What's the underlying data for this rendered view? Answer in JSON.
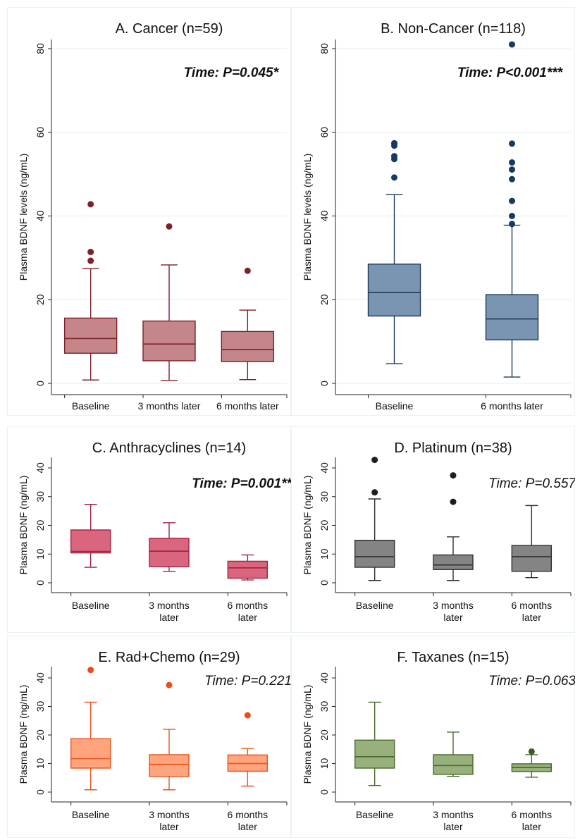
{
  "chart_data": [
    {
      "panel": "A",
      "type": "box",
      "title": "A. Cancer (n=59)",
      "annotation": "Time: P=0.045*",
      "annotation_style": "bold-italic",
      "ylabel": "Plasma BDNF levels (ng/mL)",
      "ylim": [
        0,
        80
      ],
      "yticks": [
        0,
        20,
        40,
        60,
        80
      ],
      "grid": true,
      "colors": {
        "fill": "#c4868b",
        "stroke": "#7d2228",
        "outlier": "#7d2228"
      },
      "boxes": [
        {
          "label": [
            "Baseline"
          ],
          "whisker_low": 0.8,
          "q1": 7.2,
          "median": 10.7,
          "q3": 15.6,
          "whisker_high": 27.4,
          "outliers": [
            29.3,
            31.4,
            42.8
          ]
        },
        {
          "label": [
            "3 months later"
          ],
          "whisker_low": 0.7,
          "q1": 5.4,
          "median": 9.4,
          "q3": 14.9,
          "whisker_high": 28.3,
          "outliers": [
            37.5
          ]
        },
        {
          "label": [
            "6 months later"
          ],
          "whisker_low": 0.9,
          "q1": 5.2,
          "median": 8.1,
          "q3": 12.4,
          "whisker_high": 17.5,
          "outliers": [
            26.9
          ]
        }
      ]
    },
    {
      "panel": "B",
      "type": "box",
      "title": "B. Non-Cancer (n=118)",
      "annotation": "Time: P<0.001***",
      "annotation_style": "bold-italic",
      "ylabel": "Plasma BDNF levels (ng/mL)",
      "ylim": [
        0,
        80
      ],
      "yticks": [
        0,
        20,
        40,
        60,
        80
      ],
      "grid": true,
      "colors": {
        "fill": "#7995b2",
        "stroke": "#1c3a5e",
        "outlier": "#143965"
      },
      "boxes": [
        {
          "label": [
            "Baseline"
          ],
          "whisker_low": 4.7,
          "q1": 16.1,
          "median": 21.7,
          "q3": 28.5,
          "whisker_high": 45.1,
          "outliers": [
            49.2,
            53.6,
            54.3,
            56.8,
            57.4
          ]
        },
        {
          "label": [
            "6 months later"
          ],
          "whisker_low": 1.5,
          "q1": 10.4,
          "median": 15.4,
          "q3": 21.2,
          "whisker_high": 37.8,
          "outliers": [
            38.1,
            40.0,
            43.6,
            48.8,
            51.1,
            52.8,
            57.3,
            81.0
          ]
        }
      ]
    },
    {
      "panel": "C",
      "type": "box",
      "title": "C. Anthracyclines (n=14)",
      "annotation": "Time: P=0.001**",
      "annotation_style": "bold-italic",
      "ylabel": "Plasma BDNF (ng/mL)",
      "ylim": [
        0,
        40
      ],
      "yticks": [
        0,
        10,
        20,
        30,
        40
      ],
      "grid": false,
      "colors": {
        "fill": "#d9657f",
        "stroke": "#a3233f",
        "outlier": "#a3233f"
      },
      "boxes": [
        {
          "label": [
            "Baseline"
          ],
          "whisker_low": 5.4,
          "q1": 10.4,
          "median": 10.9,
          "q3": 18.4,
          "whisker_high": 27.3,
          "outliers": []
        },
        {
          "label": [
            "3 months",
            "later"
          ],
          "whisker_low": 4.0,
          "q1": 5.6,
          "median": 11.0,
          "q3": 15.5,
          "whisker_high": 20.9,
          "outliers": []
        },
        {
          "label": [
            "6 months",
            "later"
          ],
          "whisker_low": 1.0,
          "q1": 1.6,
          "median": 5.2,
          "q3": 7.5,
          "whisker_high": 9.7,
          "outliers": []
        }
      ]
    },
    {
      "panel": "D",
      "type": "box",
      "title": "D. Platinum (n=38)",
      "annotation": "Time: P=0.557",
      "annotation_style": "italic",
      "ylabel": "Plasma BDNF (ng/mL)",
      "ylim": [
        0,
        40
      ],
      "yticks": [
        0,
        10,
        20,
        30,
        40
      ],
      "grid": false,
      "colors": {
        "fill": "#848484",
        "stroke": "#303030",
        "outlier": "#1e1e1e"
      },
      "boxes": [
        {
          "label": [
            "Baseline"
          ],
          "whisker_low": 0.8,
          "q1": 5.4,
          "median": 9.1,
          "q3": 14.8,
          "whisker_high": 29.2,
          "outliers": [
            31.5,
            42.8
          ]
        },
        {
          "label": [
            "3 months",
            "later"
          ],
          "whisker_low": 0.8,
          "q1": 4.6,
          "median": 6.2,
          "q3": 9.7,
          "whisker_high": 16.0,
          "outliers": [
            28.2,
            37.4
          ]
        },
        {
          "label": [
            "6 months",
            "later"
          ],
          "whisker_low": 1.8,
          "q1": 4.0,
          "median": 9.1,
          "q3": 13.0,
          "whisker_high": 26.9,
          "outliers": []
        }
      ]
    },
    {
      "panel": "E",
      "type": "box",
      "title": "E. Rad+Chemo (n=29)",
      "annotation": "Time: P=0.221",
      "annotation_style": "italic",
      "ylabel": "Plasma BDNF (ng/mL)",
      "ylim": [
        0,
        40
      ],
      "yticks": [
        0,
        10,
        20,
        30,
        40
      ],
      "grid": false,
      "colors": {
        "fill": "#ffa47c",
        "stroke": "#e8541f",
        "outlier": "#ee4a1c"
      },
      "boxes": [
        {
          "label": [
            "Baseline"
          ],
          "whisker_low": 0.8,
          "q1": 8.4,
          "median": 11.7,
          "q3": 18.7,
          "whisker_high": 31.5,
          "outliers": [
            42.8
          ]
        },
        {
          "label": [
            "3 months",
            "later"
          ],
          "whisker_low": 0.8,
          "q1": 5.5,
          "median": 9.7,
          "q3": 13.1,
          "whisker_high": 22.0,
          "outliers": [
            37.5
          ]
        },
        {
          "label": [
            "6 months",
            "later"
          ],
          "whisker_low": 2.1,
          "q1": 7.3,
          "median": 10.0,
          "q3": 13.0,
          "whisker_high": 15.3,
          "outliers": [
            26.9
          ]
        }
      ]
    },
    {
      "panel": "F",
      "type": "box",
      "title": "F. Taxanes (n=15)",
      "annotation": "Time: P=0.063",
      "annotation_style": "italic",
      "ylabel": "Plasma BDNF (ng/mL)",
      "ylim": [
        0,
        40
      ],
      "yticks": [
        0,
        10,
        20,
        30,
        40
      ],
      "grid": false,
      "colors": {
        "fill": "#98b07c",
        "stroke": "#4a6a2e",
        "outlier": "#3d5c22"
      },
      "boxes": [
        {
          "label": [
            "Baseline"
          ],
          "whisker_low": 2.3,
          "q1": 8.4,
          "median": 12.4,
          "q3": 18.2,
          "whisker_high": 31.5,
          "outliers": []
        },
        {
          "label": [
            "3 months",
            "later"
          ],
          "whisker_low": 5.5,
          "q1": 6.2,
          "median": 9.3,
          "q3": 13.1,
          "whisker_high": 21.0,
          "outliers": []
        },
        {
          "label": [
            "6 months",
            "later"
          ],
          "whisker_low": 5.2,
          "q1": 7.2,
          "median": 8.6,
          "q3": 9.9,
          "whisker_high": 13.1,
          "outliers": [
            14.2
          ]
        }
      ]
    }
  ]
}
